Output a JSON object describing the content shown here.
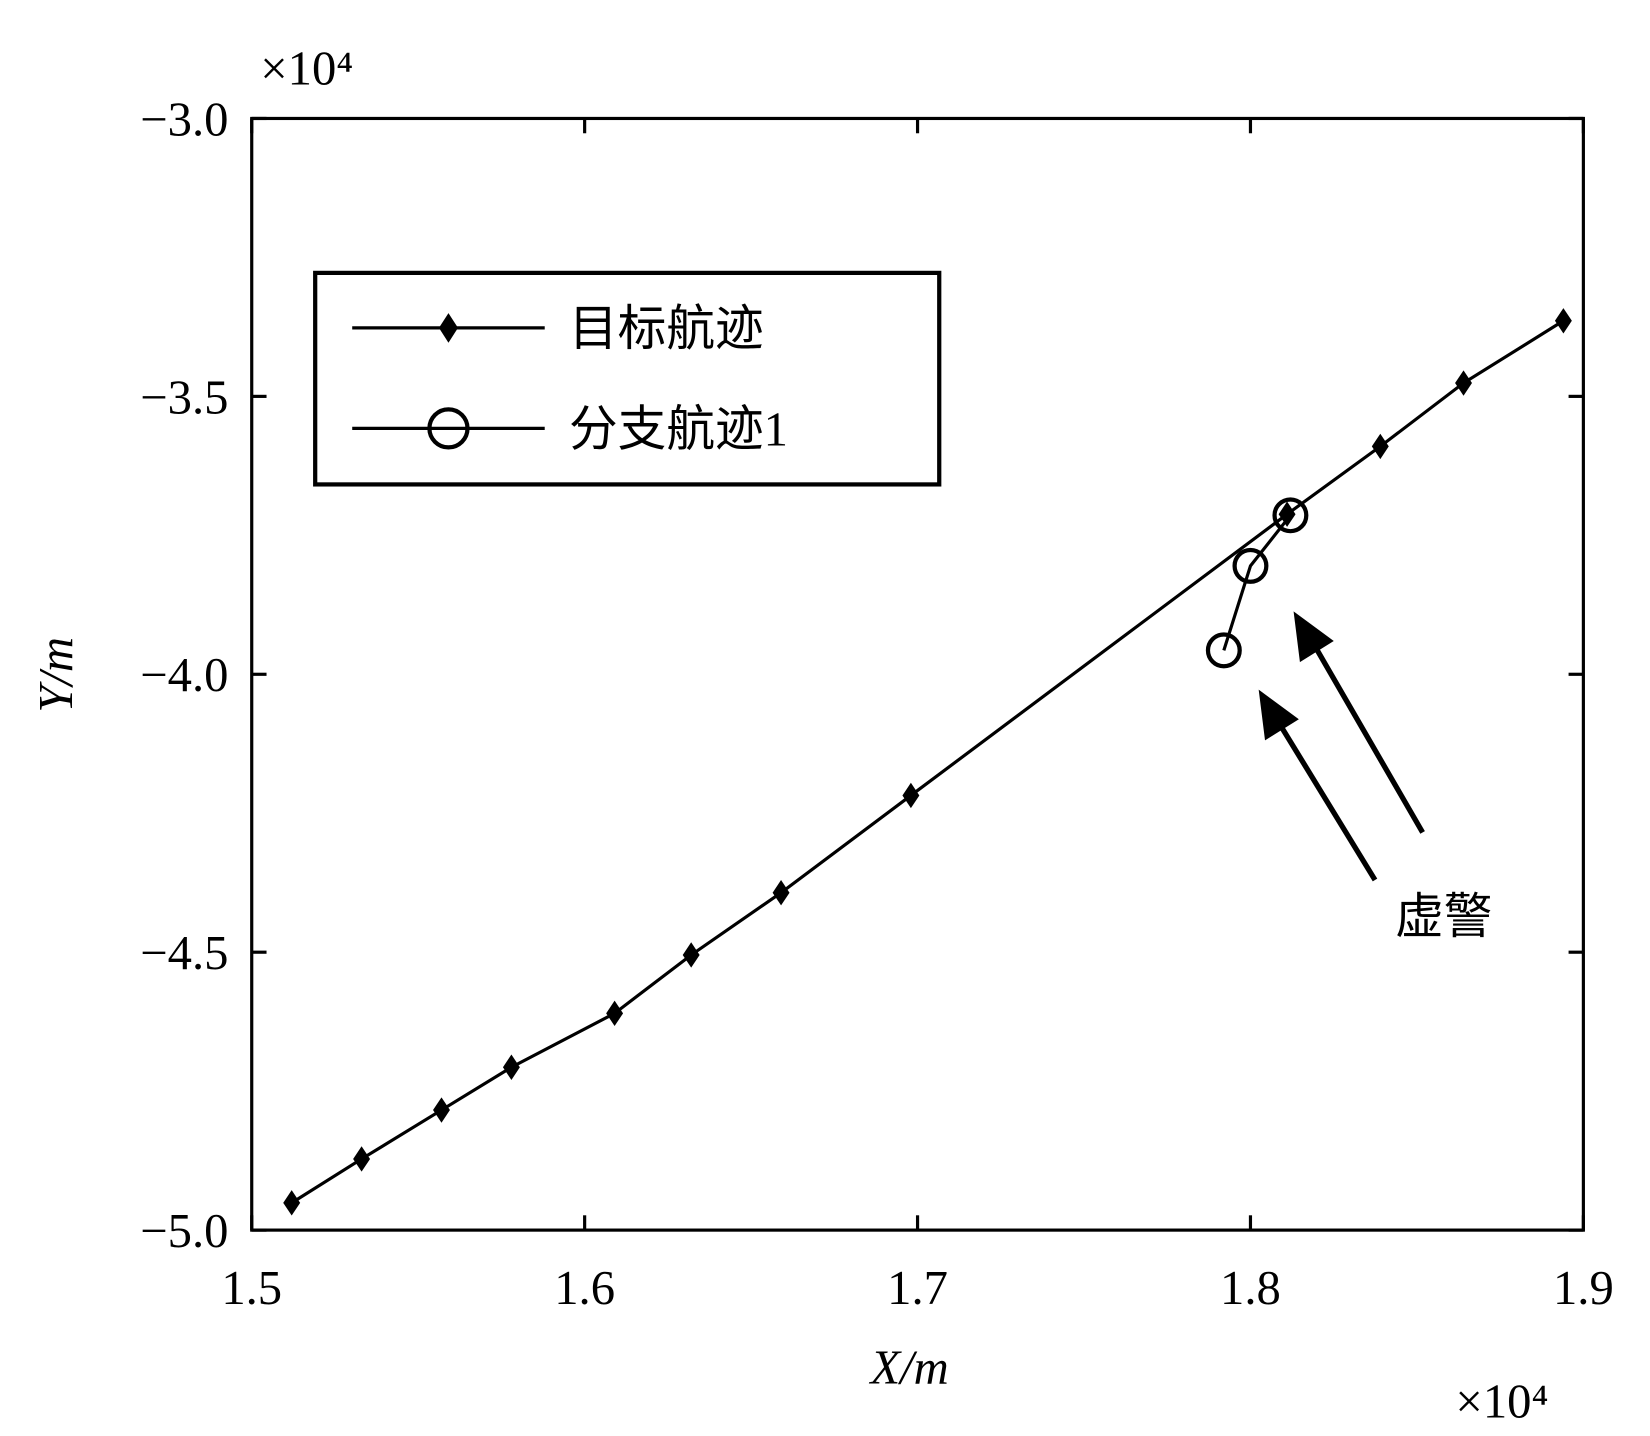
{
  "chart_data": {
    "type": "line",
    "xlabel": "X/m",
    "ylabel": "Y/m",
    "x_multiplier": "×10⁴",
    "y_multiplier": "×10⁴",
    "annotation": "虚警",
    "xlim": [
      1.5,
      1.9
    ],
    "xticks": [
      1.5,
      1.6,
      1.7,
      1.8,
      1.9
    ],
    "ylim": [
      -5.0,
      -3.0
    ],
    "yticks": [
      {
        "value": -5.0,
        "label": "−5.0"
      },
      {
        "value": -4.5,
        "label": "−4.5"
      },
      {
        "value": -4.0,
        "label": "−4.0"
      },
      {
        "value": -3.5,
        "label": "−3.5"
      },
      {
        "value": -3.0,
        "label": "−3.0"
      }
    ],
    "grid": false,
    "legend": "upper left",
    "series": [
      {
        "name": "目标航迹",
        "color": "#000000",
        "marker": "diamond",
        "x": [
          1.512,
          1.533,
          1.557,
          1.578,
          1.609,
          1.632,
          1.659,
          1.698,
          1.811,
          1.839,
          1.864,
          1.894
        ],
        "values": [
          -4.951,
          -4.872,
          -4.784,
          -4.707,
          -4.61,
          -4.505,
          -4.393,
          -4.218,
          -3.712,
          -3.59,
          -3.476,
          -3.364
        ]
      },
      {
        "name": "分支航迹1",
        "color": "#000000",
        "marker": "circle",
        "x": [
          1.792,
          1.8,
          1.812
        ],
        "values": [
          -3.957,
          -3.805,
          -3.714
        ]
      }
    ]
  }
}
